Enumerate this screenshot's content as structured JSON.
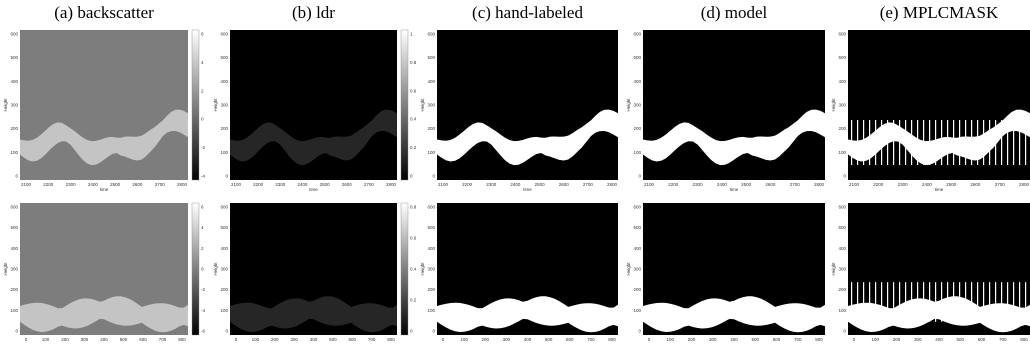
{
  "columns": [
    "(a) backscatter",
    "(b) ldr",
    "(c) hand-labeled",
    "(d) model",
    "(e) MPLCMASK"
  ],
  "rows": [
    {
      "x_label": "time",
      "y_label": "Height",
      "xticks": [
        2100,
        2200,
        2300,
        2400,
        2500,
        2600,
        2700,
        2800
      ],
      "yticks": [
        600,
        500,
        400,
        300,
        200,
        100,
        0
      ],
      "colorbars": [
        [
          6,
          4,
          2,
          0,
          -2,
          -4
        ],
        [
          1,
          0.8,
          0.6,
          0.4,
          0.2,
          0
        ]
      ]
    },
    {
      "y_label": "Height",
      "xticks": [
        0,
        100,
        200,
        300,
        400,
        500,
        600,
        700,
        800
      ],
      "yticks": [
        600,
        500,
        400,
        300,
        200,
        100,
        0
      ],
      "colorbars": [
        [
          6,
          4,
          2,
          0,
          -2,
          -4,
          -6
        ],
        [
          0.8,
          0.6,
          0.4,
          0.2,
          0
        ]
      ]
    }
  ]
}
